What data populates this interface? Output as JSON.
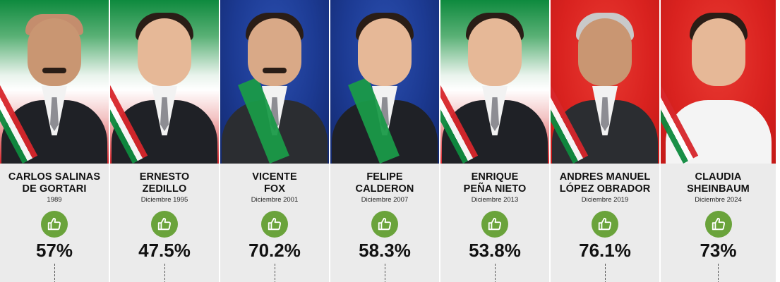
{
  "presidents": [
    {
      "name_line1": "CARLOS SALINAS",
      "name_line2": "DE GORTARI",
      "date": "1989",
      "approval": "57%",
      "background": "flag"
    },
    {
      "name_line1": "ERNESTO",
      "name_line2": "ZEDILLO",
      "date": "Diciembre 1995",
      "approval": "47.5%",
      "background": "flag"
    },
    {
      "name_line1": "VICENTE",
      "name_line2": "FOX",
      "date": "Diciembre 2001",
      "approval": "70.2%",
      "background": "blue"
    },
    {
      "name_line1": "FELIPE",
      "name_line2": "CALDERON",
      "date": "Diciembre 2007",
      "approval": "58.3%",
      "background": "blue"
    },
    {
      "name_line1": "ENRIQUE",
      "name_line2": "PEÑA NIETO",
      "date": "Diciembre 2013",
      "approval": "53.8%",
      "background": "flag"
    },
    {
      "name_line1": "ANDRES MANUEL",
      "name_line2": "LÓPEZ OBRADOR",
      "date": "Diciembre 2019",
      "approval": "76.1%",
      "background": "red"
    },
    {
      "name_line1": "CLAUDIA",
      "name_line2": "SHEINBAUM",
      "date": "Diciembre 2024",
      "approval": "73%",
      "background": "red"
    }
  ],
  "icon": "thumbs-up-icon",
  "colors": {
    "thumb_circle": "#6aa33b",
    "info_panel": "#ebebeb",
    "flag_green": "#0e8a3e",
    "flag_red": "#d7262b",
    "blue_bg": "#1c3a92",
    "red_bg": "#d9221f"
  }
}
